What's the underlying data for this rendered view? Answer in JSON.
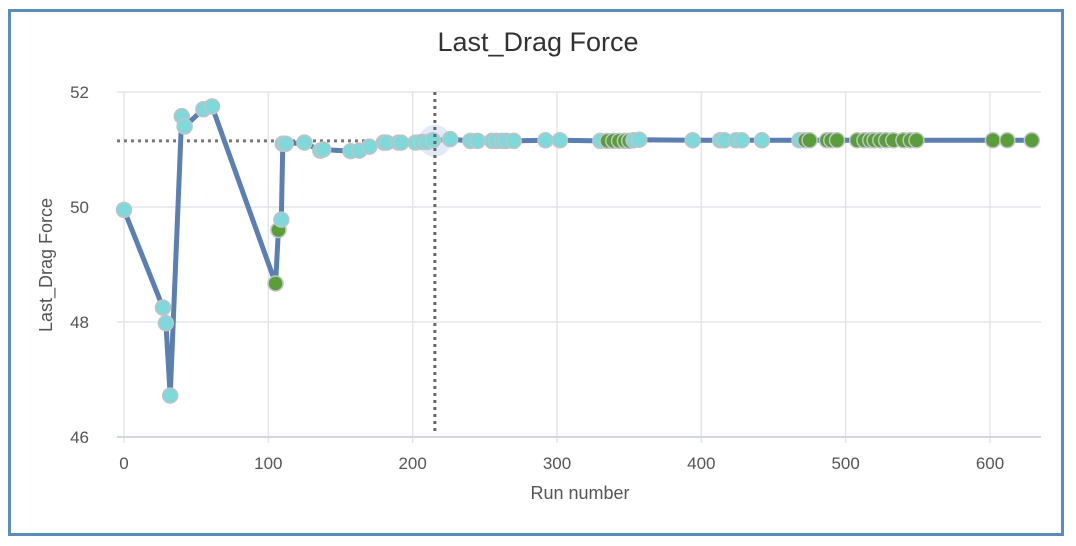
{
  "chart_data": {
    "type": "line",
    "title": "Last_Drag Force",
    "xlabel": "Run number",
    "ylabel": "Last_Drag Force",
    "xlim": [
      -5,
      638
    ],
    "ylim": [
      46,
      52
    ],
    "x_ticks": [
      0,
      100,
      200,
      300,
      400,
      500,
      600
    ],
    "y_ticks": [
      46,
      48,
      50,
      52
    ],
    "grid": true,
    "line_color": "#5a7fb0",
    "crosshair": {
      "x": 214,
      "y": 51.15
    },
    "point_colors": {
      "cyan": "#7dd9da",
      "green": "#5a9e3a",
      "edge": "#c0c4c8"
    },
    "series": [
      {
        "name": "Last_Drag Force",
        "points": [
          [
            0,
            49.95,
            "cyan"
          ],
          [
            27,
            48.25,
            "cyan"
          ],
          [
            29,
            47.98,
            "cyan"
          ],
          [
            32,
            46.72,
            "cyan"
          ],
          [
            40,
            51.58,
            "cyan"
          ],
          [
            42,
            51.4,
            "cyan"
          ],
          [
            55,
            51.7,
            "cyan"
          ],
          [
            61,
            51.75,
            "cyan"
          ],
          [
            105,
            48.67,
            "green"
          ],
          [
            107,
            49.6,
            "green"
          ],
          [
            109,
            49.78,
            "cyan"
          ],
          [
            110,
            51.1,
            "cyan"
          ],
          [
            112,
            51.1,
            "cyan"
          ],
          [
            125,
            51.12,
            "cyan"
          ],
          [
            136,
            50.98,
            "cyan"
          ],
          [
            138,
            51.0,
            "cyan"
          ],
          [
            157,
            50.97,
            "cyan"
          ],
          [
            163,
            50.98,
            "cyan"
          ],
          [
            170,
            51.05,
            "cyan"
          ],
          [
            180,
            51.12,
            "cyan"
          ],
          [
            182,
            51.12,
            "cyan"
          ],
          [
            190,
            51.12,
            "cyan"
          ],
          [
            192,
            51.12,
            "cyan"
          ],
          [
            202,
            51.12,
            "cyan"
          ],
          [
            206,
            51.13,
            "cyan"
          ],
          [
            210,
            51.13,
            "cyan"
          ],
          [
            214,
            51.16,
            "cyan"
          ],
          [
            226,
            51.18,
            "cyan"
          ],
          [
            240,
            51.15,
            "cyan"
          ],
          [
            245,
            51.15,
            "cyan"
          ],
          [
            255,
            51.15,
            "cyan"
          ],
          [
            258,
            51.15,
            "cyan"
          ],
          [
            262,
            51.15,
            "cyan"
          ],
          [
            265,
            51.15,
            "cyan"
          ],
          [
            270,
            51.15,
            "cyan"
          ],
          [
            292,
            51.16,
            "cyan"
          ],
          [
            302,
            51.16,
            "cyan"
          ],
          [
            330,
            51.15,
            "cyan"
          ],
          [
            335,
            51.15,
            "green"
          ],
          [
            339,
            51.15,
            "green"
          ],
          [
            343,
            51.15,
            "green"
          ],
          [
            347,
            51.15,
            "green"
          ],
          [
            350,
            51.15,
            "green"
          ],
          [
            353,
            51.16,
            "cyan"
          ],
          [
            357,
            51.17,
            "cyan"
          ],
          [
            394,
            51.16,
            "cyan"
          ],
          [
            413,
            51.16,
            "cyan"
          ],
          [
            416,
            51.16,
            "cyan"
          ],
          [
            424,
            51.16,
            "cyan"
          ],
          [
            428,
            51.16,
            "cyan"
          ],
          [
            442,
            51.16,
            "cyan"
          ],
          [
            468,
            51.16,
            "cyan"
          ],
          [
            472,
            51.16,
            "green"
          ],
          [
            475,
            51.16,
            "green"
          ],
          [
            487,
            51.16,
            "green"
          ],
          [
            490,
            51.16,
            "green"
          ],
          [
            494,
            51.16,
            "green"
          ],
          [
            508,
            51.16,
            "green"
          ],
          [
            513,
            51.16,
            "green"
          ],
          [
            517,
            51.16,
            "green"
          ],
          [
            520,
            51.16,
            "green"
          ],
          [
            524,
            51.16,
            "green"
          ],
          [
            528,
            51.16,
            "green"
          ],
          [
            533,
            51.16,
            "green"
          ],
          [
            540,
            51.16,
            "green"
          ],
          [
            545,
            51.16,
            "green"
          ],
          [
            549,
            51.16,
            "green"
          ],
          [
            602,
            51.16,
            "green"
          ],
          [
            612,
            51.16,
            "green"
          ],
          [
            629,
            51.16,
            "green"
          ]
        ]
      }
    ]
  }
}
